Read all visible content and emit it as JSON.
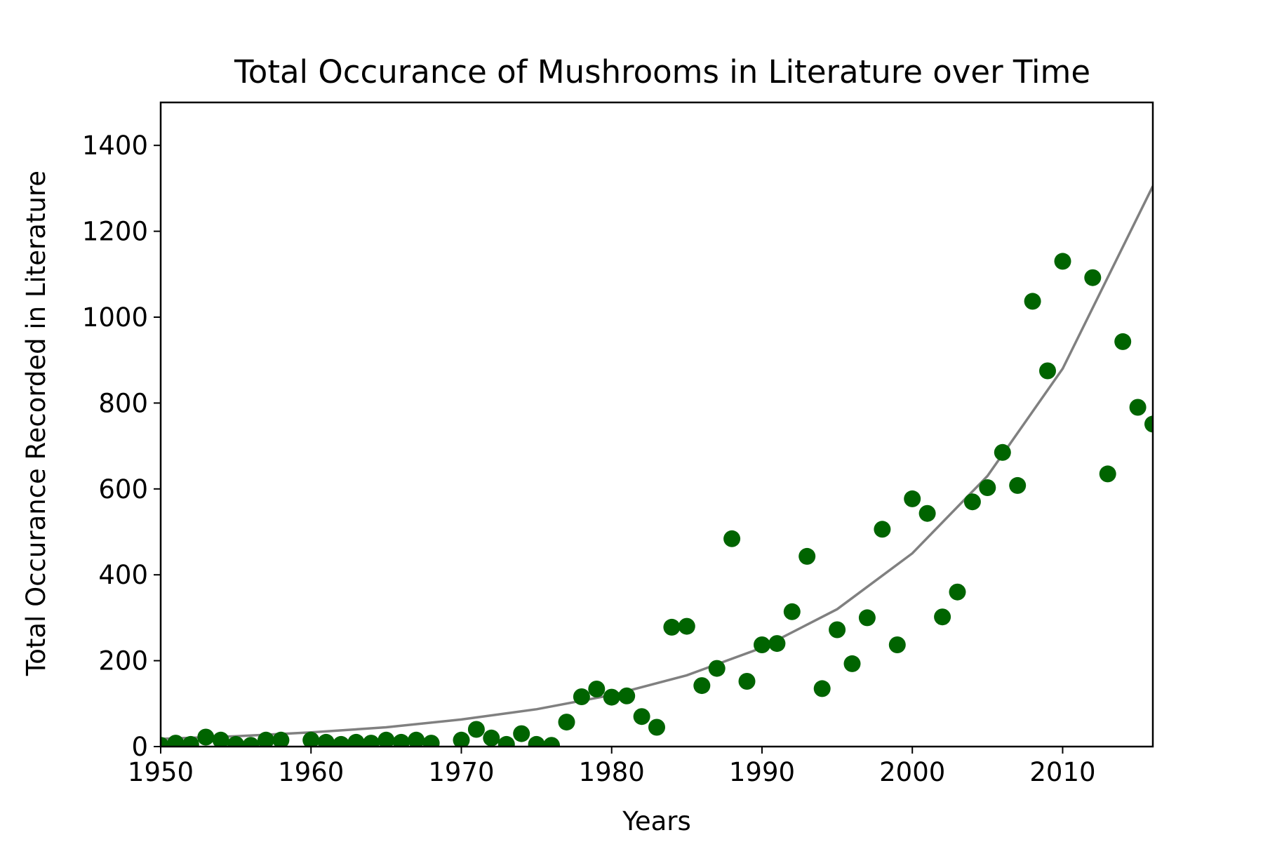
{
  "chart_data": {
    "type": "scatter",
    "title": "Total Occurance of Mushrooms in Literature over Time",
    "xlabel": "Years",
    "ylabel": "Total Occurance Recorded in Literature",
    "xlim": [
      1950,
      2016
    ],
    "ylim": [
      0,
      1500
    ],
    "x_ticks": [
      1950,
      1960,
      1970,
      1980,
      1990,
      2000,
      2010
    ],
    "y_ticks": [
      0,
      200,
      400,
      600,
      800,
      1000,
      1200,
      1400
    ],
    "grid": false,
    "legend": "none",
    "colors": {
      "points": "#006400",
      "trend": "#808080"
    },
    "series": [
      {
        "x": [
          1950,
          1951,
          1952,
          1953,
          1954,
          1955,
          1956,
          1957,
          1958,
          1960,
          1961,
          1962,
          1963,
          1964,
          1965,
          1966,
          1967,
          1968,
          1970,
          1971,
          1972,
          1973,
          1974,
          1975,
          1976,
          1977,
          1978,
          1979,
          1980,
          1981,
          1982,
          1983,
          1984,
          1985,
          1986,
          1987,
          1988,
          1989,
          1990,
          1991,
          1992,
          1993,
          1994,
          1995,
          1996,
          1997,
          1998,
          1999,
          2000,
          2001,
          2002,
          2003,
          2004,
          2005,
          2006,
          2007,
          2008,
          2009,
          2010,
          2012,
          2013,
          2014,
          2015,
          2016
        ],
        "y": [
          3,
          8,
          5,
          22,
          15,
          5,
          3,
          15,
          15,
          15,
          10,
          5,
          10,
          8,
          15,
          10,
          15,
          8,
          15,
          40,
          20,
          5,
          30,
          5,
          3,
          57,
          116,
          134,
          115,
          118,
          70,
          45,
          278,
          280,
          142,
          182,
          484,
          152,
          237,
          240,
          314,
          443,
          135,
          272,
          193,
          300,
          506,
          237,
          577,
          543,
          302,
          360,
          570,
          603,
          685,
          608,
          1037,
          875,
          1130,
          1092,
          635,
          943,
          790,
          751
        ]
      }
    ],
    "trend_line": {
      "type": "exponential",
      "points": [
        [
          1950,
          18
        ],
        [
          1955,
          24
        ],
        [
          1960,
          33
        ],
        [
          1965,
          45
        ],
        [
          1970,
          63
        ],
        [
          1975,
          87
        ],
        [
          1980,
          120
        ],
        [
          1985,
          166
        ],
        [
          1990,
          230
        ],
        [
          1995,
          320
        ],
        [
          2000,
          450
        ],
        [
          2005,
          630
        ],
        [
          2010,
          880
        ],
        [
          2016,
          1305
        ]
      ]
    }
  }
}
